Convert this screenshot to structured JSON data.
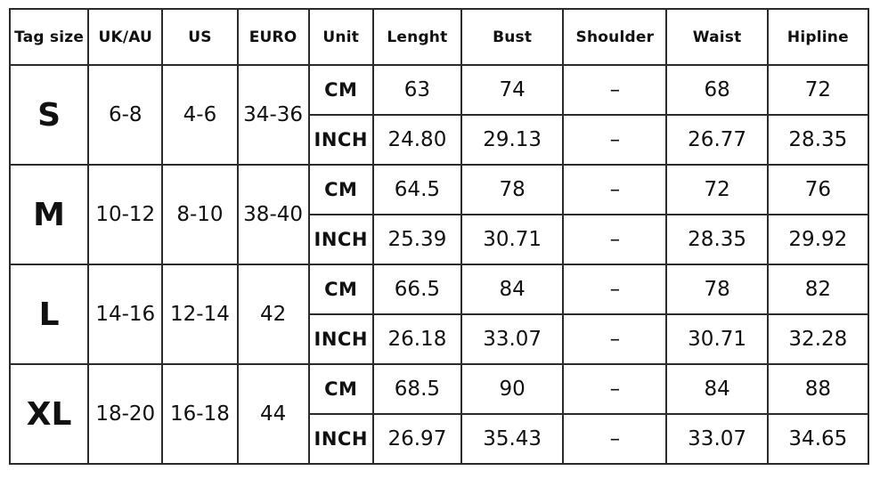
{
  "headers": [
    "Tag size",
    "UK/AU",
    "US",
    "EURO",
    "Unit",
    "Lenght",
    "Bust",
    "Shoulder",
    "Waist",
    "Hipline"
  ],
  "sizes": [
    {
      "tag": "S",
      "uk_au": "6-8",
      "us": "4-6",
      "euro": "34-36",
      "rows": [
        {
          "unit": "CM",
          "length": "63",
          "bust": "74",
          "shoulder": "–",
          "waist": "68",
          "hipline": "72"
        },
        {
          "unit": "INCH",
          "length": "24.80",
          "bust": "29.13",
          "shoulder": "–",
          "waist": "26.77",
          "hipline": "28.35"
        }
      ]
    },
    {
      "tag": "M",
      "uk_au": "10-12",
      "us": "8-10",
      "euro": "38-40",
      "rows": [
        {
          "unit": "CM",
          "length": "64.5",
          "bust": "78",
          "shoulder": "–",
          "waist": "72",
          "hipline": "76"
        },
        {
          "unit": "INCH",
          "length": "25.39",
          "bust": "30.71",
          "shoulder": "–",
          "waist": "28.35",
          "hipline": "29.92"
        }
      ]
    },
    {
      "tag": "L",
      "uk_au": "14-16",
      "us": "12-14",
      "euro": "42",
      "rows": [
        {
          "unit": "CM",
          "length": "66.5",
          "bust": "84",
          "shoulder": "–",
          "waist": "78",
          "hipline": "82"
        },
        {
          "unit": "INCH",
          "length": "26.18",
          "bust": "33.07",
          "shoulder": "–",
          "waist": "30.71",
          "hipline": "32.28"
        }
      ]
    },
    {
      "tag": "XL",
      "uk_au": "18-20",
      "us": "16-18",
      "euro": "44",
      "rows": [
        {
          "unit": "CM",
          "length": "68.5",
          "bust": "90",
          "shoulder": "–",
          "waist": "84",
          "hipline": "88"
        },
        {
          "unit": "INCH",
          "length": "26.97",
          "bust": "35.43",
          "shoulder": "–",
          "waist": "33.07",
          "hipline": "34.65"
        }
      ]
    }
  ]
}
